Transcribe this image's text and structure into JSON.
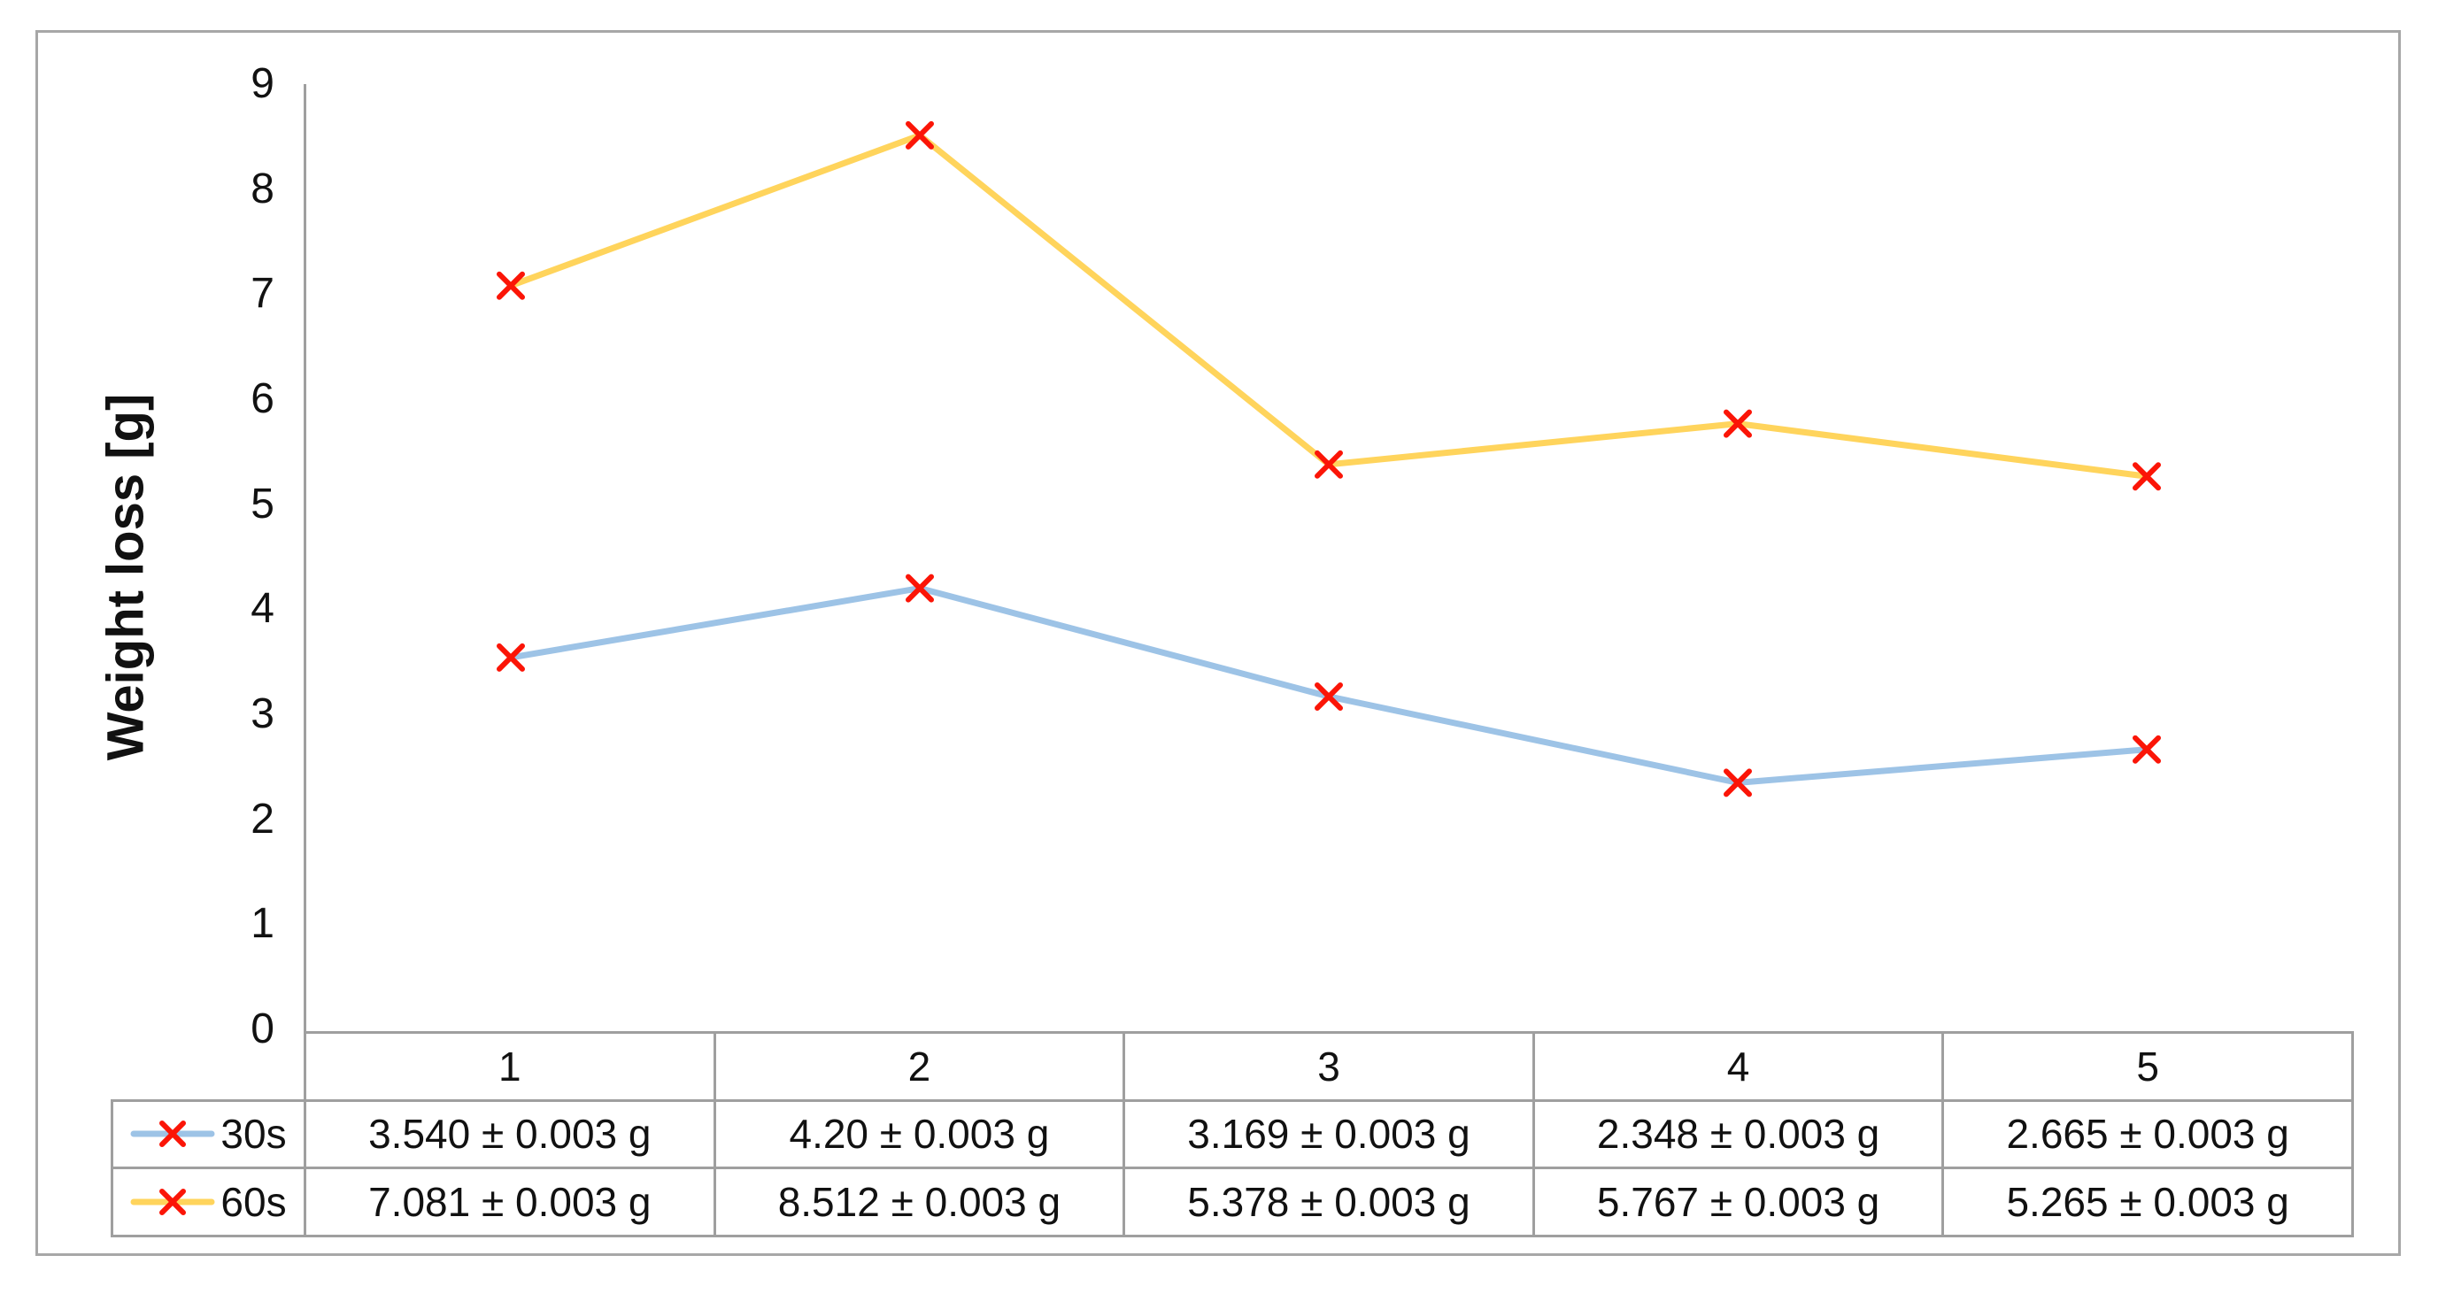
{
  "chart_data": {
    "type": "line",
    "title": "",
    "ylabel": "Weight loss [g]",
    "xlabel": "",
    "ylim": [
      0,
      9
    ],
    "yticks": [
      "0",
      "1",
      "2",
      "3",
      "4",
      "5",
      "6",
      "7",
      "8",
      "9"
    ],
    "grid": false,
    "legend_position": "data-table-left-keys",
    "categories": [
      "1",
      "2",
      "3",
      "4",
      "5"
    ],
    "series": [
      {
        "name": "30s",
        "color": "#9dc3e6",
        "marker": "x",
        "marker_color": "#fb1507",
        "values": [
          3.54,
          4.2,
          3.169,
          2.348,
          2.665
        ]
      },
      {
        "name": "60s",
        "color": "#ffd45c",
        "marker": "x",
        "marker_color": "#fb1507",
        "values": [
          7.081,
          8.512,
          5.378,
          5.767,
          5.265
        ]
      }
    ],
    "data_table": {
      "header": [
        "1",
        "2",
        "3",
        "4",
        "5"
      ],
      "rows": [
        {
          "label": "30s",
          "cells": [
            "3.540 ± 0.003 g",
            "4.20 ± 0.003 g",
            "3.169 ± 0.003 g",
            "2.348 ± 0.003 g",
            "2.665 ± 0.003 g"
          ]
        },
        {
          "label": "60s",
          "cells": [
            "7.081 ± 0.003 g",
            "8.512 ± 0.003 g",
            "5.378 ± 0.003 g",
            "5.767 ± 0.003 g",
            "5.265 ± 0.003 g"
          ]
        }
      ]
    },
    "colors": {
      "axis_line": "#9f9f9f",
      "frame_border": "#a7a7a7",
      "text": "#111111"
    }
  }
}
